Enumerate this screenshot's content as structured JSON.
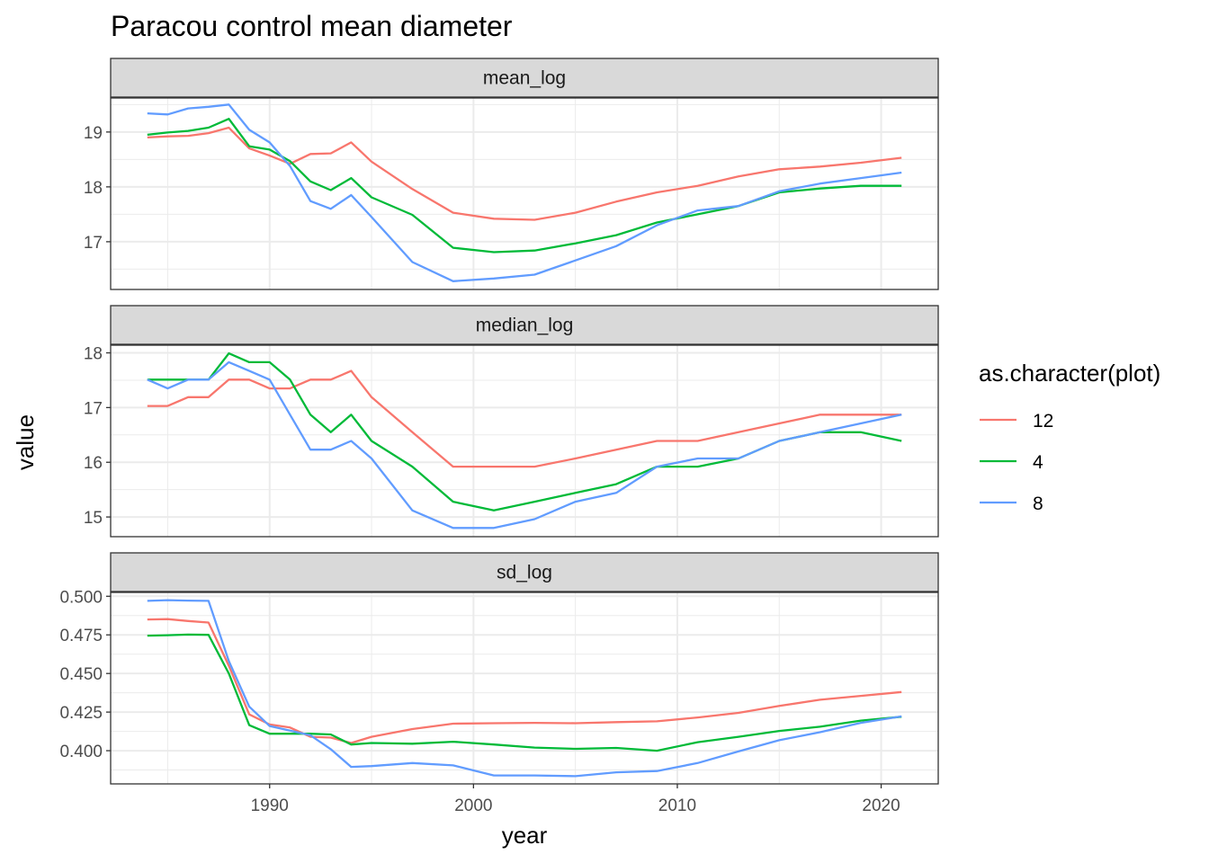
{
  "chart_data": {
    "type": "line",
    "title": "Paracou control mean diameter",
    "xlabel": "year",
    "ylabel": "value",
    "xlim": [
      1982.2,
      2022.8
    ],
    "x_ticks": [
      1990,
      2000,
      2010,
      2020
    ],
    "grid": true,
    "legend": {
      "title": "as.character(plot)",
      "position": "right",
      "entries": [
        {
          "label": "12",
          "color": "#F8766D"
        },
        {
          "label": "4",
          "color": "#00BA38"
        },
        {
          "label": "8",
          "color": "#619CFF"
        }
      ]
    },
    "panels": [
      {
        "strip": "mean_log",
        "ylim": [
          16.13,
          19.62
        ],
        "y_ticks": [
          17,
          18,
          19
        ],
        "y_tick_labels": [
          "17",
          "18",
          "19"
        ],
        "series": [
          {
            "name": "12",
            "color": "#F8766D",
            "x": [
              1984,
              1985,
              1986,
              1987,
              1988,
              1989,
              1990,
              1991,
              1992,
              1993,
              1994,
              1995,
              1997,
              1999,
              2001,
              2003,
              2005,
              2007,
              2009,
              2011,
              2013,
              2015,
              2017,
              2019,
              2021
            ],
            "y": [
              18.9,
              18.92,
              18.93,
              18.98,
              19.08,
              18.7,
              18.57,
              18.42,
              18.6,
              18.61,
              18.81,
              18.46,
              17.96,
              17.53,
              17.42,
              17.4,
              17.53,
              17.73,
              17.9,
              18.02,
              18.19,
              18.32,
              18.37,
              18.44,
              18.53
            ]
          },
          {
            "name": "4",
            "color": "#00BA38",
            "x": [
              1984,
              1985,
              1986,
              1987,
              1988,
              1989,
              1990,
              1991,
              1992,
              1993,
              1994,
              1995,
              1997,
              1999,
              2001,
              2003,
              2005,
              2007,
              2009,
              2011,
              2013,
              2015,
              2017,
              2019,
              2021
            ],
            "y": [
              18.95,
              18.99,
              19.02,
              19.08,
              19.24,
              18.74,
              18.68,
              18.47,
              18.1,
              17.94,
              18.16,
              17.81,
              17.49,
              16.89,
              16.81,
              16.84,
              16.97,
              17.12,
              17.35,
              17.5,
              17.65,
              17.9,
              17.97,
              18.02,
              18.02
            ]
          },
          {
            "name": "8",
            "color": "#619CFF",
            "x": [
              1984,
              1985,
              1986,
              1987,
              1988,
              1989,
              1990,
              1991,
              1992,
              1993,
              1994,
              1995,
              1997,
              1999,
              2001,
              2003,
              2005,
              2007,
              2009,
              2011,
              2013,
              2015,
              2017,
              2019,
              2021
            ],
            "y": [
              19.34,
              19.32,
              19.43,
              19.46,
              19.5,
              19.04,
              18.81,
              18.38,
              17.74,
              17.6,
              17.85,
              17.45,
              16.63,
              16.28,
              16.33,
              16.4,
              16.66,
              16.92,
              17.3,
              17.57,
              17.65,
              17.92,
              18.06,
              18.16,
              18.26
            ]
          }
        ]
      },
      {
        "strip": "median_log",
        "ylim": [
          14.64,
          18.14
        ],
        "y_ticks": [
          15,
          16,
          17,
          18
        ],
        "y_tick_labels": [
          "15",
          "16",
          "17",
          "18"
        ],
        "series": [
          {
            "name": "12",
            "color": "#F8766D",
            "x": [
              1984,
              1985,
              1986,
              1987,
              1988,
              1989,
              1990,
              1991,
              1992,
              1993,
              1994,
              1995,
              1997,
              1999,
              2001,
              2003,
              2005,
              2007,
              2009,
              2011,
              2013,
              2015,
              2017,
              2019,
              2021
            ],
            "y": [
              17.03,
              17.03,
              17.19,
              17.19,
              17.51,
              17.51,
              17.35,
              17.35,
              17.51,
              17.51,
              17.67,
              17.19,
              16.55,
              15.92,
              15.92,
              15.92,
              16.07,
              16.23,
              16.39,
              16.39,
              16.55,
              16.71,
              16.87,
              16.87,
              16.87
            ]
          },
          {
            "name": "4",
            "color": "#00BA38",
            "x": [
              1984,
              1985,
              1986,
              1987,
              1988,
              1989,
              1990,
              1991,
              1992,
              1993,
              1994,
              1995,
              1997,
              1999,
              2001,
              2003,
              2005,
              2007,
              2009,
              2011,
              2013,
              2015,
              2017,
              2019,
              2021
            ],
            "y": [
              17.51,
              17.51,
              17.51,
              17.51,
              17.99,
              17.83,
              17.83,
              17.51,
              16.87,
              16.55,
              16.87,
              16.39,
              15.92,
              15.28,
              15.12,
              15.28,
              15.44,
              15.6,
              15.92,
              15.92,
              16.07,
              16.39,
              16.55,
              16.55,
              16.39
            ]
          },
          {
            "name": "8",
            "color": "#619CFF",
            "x": [
              1984,
              1985,
              1986,
              1987,
              1988,
              1989,
              1990,
              1991,
              1992,
              1993,
              1994,
              1995,
              1997,
              1999,
              2001,
              2003,
              2005,
              2007,
              2009,
              2011,
              2013,
              2015,
              2017,
              2019,
              2021
            ],
            "y": [
              17.51,
              17.35,
              17.51,
              17.51,
              17.83,
              17.67,
              17.51,
              16.87,
              16.23,
              16.23,
              16.39,
              16.07,
              15.12,
              14.8,
              14.8,
              14.96,
              15.28,
              15.44,
              15.92,
              16.07,
              16.07,
              16.39,
              16.55,
              16.71,
              16.87
            ]
          }
        ]
      },
      {
        "strip": "sd_log",
        "ylim": [
          0.3785,
          0.5025
        ],
        "y_ticks": [
          0.4,
          0.425,
          0.45,
          0.475,
          0.5
        ],
        "y_tick_labels": [
          "0.400",
          "0.425",
          "0.450",
          "0.475",
          "0.500"
        ],
        "series": [
          {
            "name": "12",
            "color": "#F8766D",
            "x": [
              1984,
              1985,
              1986,
              1987,
              1988,
              1989,
              1990,
              1991,
              1992,
              1993,
              1994,
              1995,
              1997,
              1999,
              2001,
              2003,
              2005,
              2007,
              2009,
              2011,
              2013,
              2015,
              2017,
              2019,
              2021
            ],
            "y": [
              0.485,
              0.4852,
              0.484,
              0.483,
              0.455,
              0.4235,
              0.417,
              0.415,
              0.409,
              0.4085,
              0.405,
              0.409,
              0.414,
              0.4175,
              0.4178,
              0.418,
              0.4178,
              0.4185,
              0.419,
              0.4215,
              0.4245,
              0.429,
              0.433,
              0.4355,
              0.438
            ]
          },
          {
            "name": "4",
            "color": "#00BA38",
            "x": [
              1984,
              1985,
              1986,
              1987,
              1988,
              1989,
              1990,
              1991,
              1992,
              1993,
              1994,
              1995,
              1997,
              1999,
              2001,
              2003,
              2005,
              2007,
              2009,
              2011,
              2013,
              2015,
              2017,
              2019,
              2021
            ],
            "y": [
              0.4745,
              0.4748,
              0.4752,
              0.475,
              0.45,
              0.4165,
              0.411,
              0.411,
              0.411,
              0.4105,
              0.404,
              0.405,
              0.4045,
              0.4058,
              0.404,
              0.402,
              0.4012,
              0.4018,
              0.4,
              0.4055,
              0.409,
              0.4128,
              0.4155,
              0.4195,
              0.422
            ]
          },
          {
            "name": "8",
            "color": "#619CFF",
            "x": [
              1984,
              1985,
              1986,
              1987,
              1988,
              1989,
              1990,
              1991,
              1992,
              1993,
              1994,
              1995,
              1997,
              1999,
              2001,
              2003,
              2005,
              2007,
              2009,
              2011,
              2013,
              2015,
              2017,
              2019,
              2021
            ],
            "y": [
              0.497,
              0.4975,
              0.4972,
              0.497,
              0.458,
              0.4285,
              0.416,
              0.413,
              0.41,
              0.401,
              0.3895,
              0.39,
              0.392,
              0.3905,
              0.384,
              0.384,
              0.3835,
              0.386,
              0.3868,
              0.392,
              0.3995,
              0.4068,
              0.412,
              0.418,
              0.4222
            ]
          }
        ]
      }
    ]
  }
}
